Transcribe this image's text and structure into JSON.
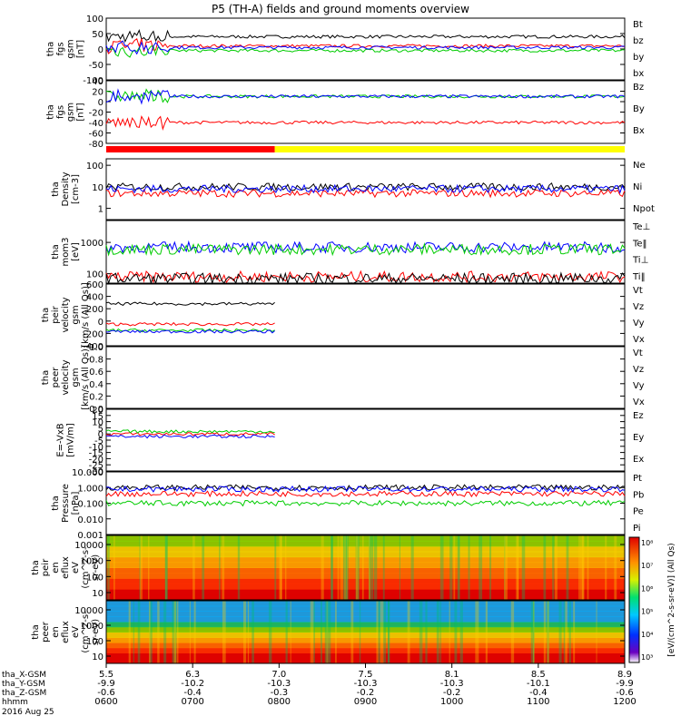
{
  "title": "P5 (TH-A) fields and ground moments overview",
  "colors": {
    "black": "#000000",
    "red": "#ff0000",
    "green": "#00cc00",
    "blue": "#0000ff",
    "yellow": "#ffff00",
    "axis": "#000000"
  },
  "chart_data": {
    "type": "line",
    "x_axis": {
      "range": [
        "0600",
        "1200"
      ],
      "ticks": [
        "0600",
        "0700",
        "0800",
        "0900",
        "1000",
        "1100",
        "1200"
      ],
      "rows": [
        {
          "label": "tha_X-GSM",
          "values": [
            "5.5",
            "6.3",
            "7.0",
            "7.5",
            "8.1",
            "8.5",
            "8.9"
          ]
        },
        {
          "label": "tha_Y-GSM",
          "values": [
            "-9.9",
            "-10.2",
            "-10.3",
            "-10.3",
            "-10.3",
            "-10.1",
            "-9.9"
          ]
        },
        {
          "label": "tha_Z-GSM",
          "values": [
            "-0.6",
            "-0.4",
            "-0.3",
            "-0.2",
            "-0.2",
            "-0.4",
            "-0.6"
          ]
        },
        {
          "label": "hhmm",
          "values": [
            "0600",
            "0700",
            "0800",
            "0900",
            "1000",
            "1100",
            "1200"
          ]
        }
      ],
      "date": "2016 Aug 25"
    },
    "status_bar": [
      {
        "color": "red",
        "start": "0600",
        "end": "0750"
      },
      {
        "color": "yellow",
        "start": "0750",
        "end": "1200"
      }
    ],
    "panels": [
      {
        "name": "fgs-gsm",
        "ylabel": [
          "tha",
          "fgs",
          "gsm",
          "[nT]"
        ],
        "ylim": [
          -100,
          100
        ],
        "yticks": [
          "100",
          "50",
          "0",
          "-50",
          "-100"
        ],
        "series": [
          {
            "name": "Bt",
            "color": "black",
            "level": 40
          },
          {
            "name": "bz",
            "color": "red",
            "level": 10
          },
          {
            "name": "by",
            "color": "green",
            "level": -5
          },
          {
            "name": "bx",
            "color": "blue",
            "level": 5
          }
        ]
      },
      {
        "name": "fgs-gsm-2",
        "ylabel": [
          "tha",
          "fgs",
          "gsm",
          "[nT]"
        ],
        "ylim": [
          -80,
          40
        ],
        "yticks": [
          "40",
          "20",
          "0",
          "-20",
          "-40",
          "-60",
          "-80"
        ],
        "series": [
          {
            "name": "Bz",
            "color": "red",
            "level": -40
          },
          {
            "name": "By",
            "color": "green",
            "level": 10
          },
          {
            "name": "Bx",
            "color": "blue",
            "level": 10
          }
        ]
      },
      {
        "name": "density",
        "ylabel": [
          "tha",
          "Density",
          "[cm-3]"
        ],
        "scale": "log",
        "ylim": [
          0.3,
          200
        ],
        "yticks": [
          "100",
          "10",
          "1"
        ],
        "series": [
          {
            "name": "Ne",
            "color": "red",
            "level": 5
          },
          {
            "name": "Ni",
            "color": "black",
            "level": 10
          },
          {
            "name": "Npot",
            "color": "blue",
            "level": 8
          }
        ]
      },
      {
        "name": "temperature",
        "ylabel": [
          "tha",
          "mom3",
          "[eV]"
        ],
        "scale": "log",
        "ylim": [
          50,
          5000
        ],
        "yticks": [
          "1000",
          "100"
        ],
        "series": [
          {
            "name": "Te⊥",
            "color": "red",
            "level": 80
          },
          {
            "name": "Te‖",
            "color": "black",
            "level": 70
          },
          {
            "name": "Ti⊥",
            "color": "blue",
            "level": 700
          },
          {
            "name": "Ti‖",
            "color": "green",
            "level": 600
          }
        ]
      },
      {
        "name": "peir-velocity",
        "ylabel": [
          "tha",
          "peir",
          "velocity",
          "gsm",
          "[km/s (All Qs)]"
        ],
        "ylim": [
          -400,
          600
        ],
        "yticks": [
          "600",
          "400",
          "200",
          "0",
          "-200",
          "-400"
        ],
        "series": [
          {
            "name": "Vt",
            "color": "black",
            "level": 280
          },
          {
            "name": "Vz",
            "color": "red",
            "level": -50
          },
          {
            "name": "Vy",
            "color": "green",
            "level": -150
          },
          {
            "name": "Vx",
            "color": "blue",
            "level": -170
          }
        ]
      },
      {
        "name": "peer-velocity",
        "ylabel": [
          "tha",
          "peer",
          "velocity",
          "gsm",
          "[km/s (All Qs)]"
        ],
        "ylim": [
          0,
          1
        ],
        "yticks": [
          "1.0",
          "0.8",
          "0.6",
          "0.4",
          "0.2",
          "0.0"
        ],
        "series": [
          {
            "name": "Vt",
            "color": "black"
          },
          {
            "name": "Vz",
            "color": "red"
          },
          {
            "name": "Vy",
            "color": "green"
          },
          {
            "name": "Vx",
            "color": "blue"
          }
        ]
      },
      {
        "name": "efield",
        "ylabel": [
          "E=-VxB",
          "[mV/m]"
        ],
        "ylim": [
          -30,
          20
        ],
        "yticks": [
          "20",
          "15",
          "10",
          "5",
          "0",
          "-5",
          "-10",
          "-15",
          "-20",
          "-25",
          "-30"
        ],
        "series": [
          {
            "name": "Ez",
            "color": "red",
            "level": 0
          },
          {
            "name": "Ey",
            "color": "green",
            "level": 2
          },
          {
            "name": "Ex",
            "color": "blue",
            "level": -2
          }
        ]
      },
      {
        "name": "pressure",
        "ylabel": [
          "tha",
          "Pressure",
          "[nPa]"
        ],
        "scale": "log",
        "ylim": [
          0.001,
          10
        ],
        "yticks": [
          "10.000",
          "1.000",
          "0.100",
          "0.010",
          "0.001"
        ],
        "series": [
          {
            "name": "Pt",
            "color": "black",
            "level": 1.0
          },
          {
            "name": "Pb",
            "color": "red",
            "level": 0.4
          },
          {
            "name": "Pe",
            "color": "green",
            "level": 0.1
          },
          {
            "name": "Pi",
            "color": "blue",
            "level": 0.8
          }
        ]
      },
      {
        "name": "peir-spectrogram",
        "type": "heatmap",
        "ylabel": [
          "tha",
          "peir",
          "en",
          "eflux",
          "eV",
          "(cm^2-s-",
          "sr-eV)"
        ],
        "yticks": [
          "10000",
          "1000",
          "100",
          "10"
        ]
      },
      {
        "name": "peer-spectrogram",
        "type": "heatmap",
        "ylabel": [
          "tha",
          "peer",
          "en",
          "eflux",
          "eV",
          "(cm^2-s-",
          "sr-eV)"
        ],
        "yticks": [
          "10000",
          "1000",
          "100",
          "10"
        ]
      }
    ],
    "colorbar": {
      "label": "[eV/(cm^2-s-sr-eV)] (All Qs)",
      "ticks": [
        "10⁸",
        "10⁷",
        "10⁶",
        "10⁵",
        "10⁴",
        "10³"
      ]
    }
  }
}
